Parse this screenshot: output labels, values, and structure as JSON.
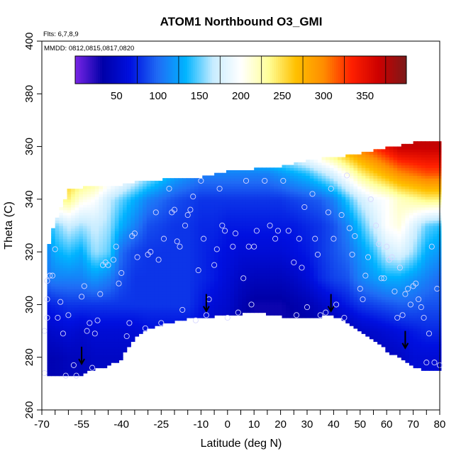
{
  "chart_data": {
    "type": "heatmap",
    "title": "ATOM1 Northbound O3_GMI",
    "annotations": {
      "flights": "Flts: 6,7,8,9",
      "dates": "MMDD: 0812,0815,0817,0820"
    },
    "xlabel": "Latitude (deg N)",
    "ylabel": "Theta (C)",
    "xlim": [
      -70,
      80
    ],
    "ylim": [
      260,
      400
    ],
    "x_tick_labels": [
      "-70",
      "-55",
      "-40",
      "-25",
      "-10",
      "0",
      "10",
      "20",
      "30",
      "40",
      "50",
      "60",
      "70",
      "80"
    ],
    "x_tick_values": [
      -70,
      -55,
      -40,
      -25,
      -10,
      0,
      10,
      20,
      30,
      40,
      50,
      60,
      70,
      80
    ],
    "x_minor_ticks": [
      -65,
      -60,
      -50,
      -45,
      -35,
      -30,
      -20,
      -15,
      -5,
      5,
      15,
      25,
      35,
      45,
      55,
      65,
      75
    ],
    "y_tick_labels": [
      "260",
      "280",
      "300",
      "320",
      "340",
      "360",
      "380",
      "400"
    ],
    "y_tick_values": [
      260,
      280,
      300,
      320,
      340,
      360,
      380,
      400
    ],
    "colorbar": {
      "range": [
        0,
        400
      ],
      "tick_labels": [
        "50",
        "100",
        "150",
        "200",
        "250",
        "300",
        "350"
      ],
      "tick_values": [
        50,
        100,
        150,
        200,
        250,
        300,
        350
      ],
      "colors": [
        "#7a25e6",
        "#0000a8",
        "#0010e0",
        "#1f6cf5",
        "#00b4ff",
        "#c8ecff",
        "#ffffff",
        "#ffff99",
        "#ffc000",
        "#ff8c00",
        "#ff2000",
        "#cc0000",
        "#7a1a1a"
      ]
    },
    "floor": {
      "lat": [
        -70,
        -65,
        -60,
        -55,
        -50,
        -45,
        -40,
        -35,
        -30,
        -25,
        -20,
        -15,
        -10,
        -5,
        0,
        5,
        10,
        15,
        20,
        25,
        30,
        35,
        40,
        45,
        50,
        55,
        60,
        65,
        70,
        75,
        80
      ],
      "theta": [
        274,
        273,
        273,
        274,
        276,
        277,
        280,
        288,
        291,
        293,
        294,
        295,
        295,
        296,
        296,
        297,
        298,
        297,
        296,
        295,
        295,
        296,
        296,
        294,
        290,
        287,
        283,
        280,
        277,
        275,
        275
      ]
    },
    "ceiling": {
      "lat": [
        -70,
        -65,
        -60,
        -55,
        -50,
        -45,
        -40,
        -35,
        -30,
        -25,
        -20,
        -15,
        -10,
        -5,
        0,
        5,
        10,
        15,
        20,
        25,
        30,
        35,
        40,
        45,
        50,
        55,
        60,
        65,
        70,
        75,
        80
      ],
      "theta": [
        313,
        331,
        343,
        344,
        345,
        345,
        345,
        346,
        347,
        347,
        348,
        348,
        348,
        349,
        350,
        351,
        351,
        352,
        352,
        353,
        354,
        355,
        356,
        356,
        357,
        358,
        359,
        360,
        361,
        362,
        362
      ]
    },
    "lat_nodes": [
      -70,
      -65,
      -60,
      -55,
      -50,
      -45,
      -40,
      -35,
      -30,
      -25,
      -20,
      -15,
      -10,
      -5,
      0,
      5,
      10,
      15,
      20,
      25,
      30,
      35,
      40,
      45,
      50,
      55,
      60,
      65,
      70,
      75,
      80
    ],
    "theta_nodes": [
      270,
      280,
      290,
      300,
      310,
      320,
      330,
      340,
      350,
      360
    ],
    "o3_grid": [
      [
        40,
        40,
        45,
        45,
        50,
        50,
        50,
        50,
        60,
        60,
        60,
        60,
        50,
        45,
        40,
        30,
        30,
        30,
        30,
        30,
        30,
        30,
        30,
        35,
        40,
        40,
        45,
        50,
        60,
        60,
        60
      ],
      [
        40,
        40,
        45,
        45,
        50,
        50,
        50,
        50,
        60,
        60,
        60,
        60,
        50,
        45,
        40,
        30,
        30,
        30,
        30,
        30,
        30,
        30,
        30,
        35,
        40,
        40,
        45,
        50,
        60,
        60,
        60
      ],
      [
        50,
        55,
        60,
        55,
        60,
        60,
        60,
        60,
        65,
        65,
        65,
        65,
        60,
        50,
        45,
        35,
        30,
        30,
        30,
        30,
        30,
        35,
        35,
        40,
        50,
        55,
        60,
        65,
        70,
        75,
        75
      ],
      [
        70,
        75,
        80,
        80,
        80,
        80,
        80,
        80,
        80,
        80,
        80,
        80,
        70,
        60,
        55,
        40,
        30,
        30,
        30,
        35,
        40,
        50,
        60,
        70,
        80,
        85,
        90,
        95,
        95,
        90,
        90
      ],
      [
        100,
        110,
        110,
        110,
        120,
        110,
        90,
        80,
        80,
        80,
        80,
        80,
        75,
        70,
        60,
        50,
        45,
        45,
        45,
        50,
        60,
        75,
        85,
        90,
        110,
        120,
        130,
        130,
        120,
        110,
        100
      ],
      [
        100,
        130,
        140,
        130,
        160,
        150,
        100,
        85,
        80,
        80,
        80,
        80,
        75,
        70,
        65,
        60,
        60,
        60,
        60,
        65,
        70,
        80,
        90,
        100,
        120,
        140,
        170,
        180,
        160,
        130,
        120
      ],
      [
        110,
        150,
        170,
        160,
        170,
        160,
        130,
        110,
        90,
        85,
        80,
        80,
        75,
        75,
        70,
        70,
        70,
        70,
        70,
        70,
        75,
        80,
        90,
        110,
        140,
        170,
        200,
        210,
        180,
        150,
        140
      ],
      [
        180,
        230,
        240,
        210,
        200,
        170,
        150,
        130,
        110,
        100,
        90,
        85,
        80,
        80,
        80,
        80,
        80,
        80,
        80,
        85,
        90,
        95,
        110,
        140,
        170,
        190,
        200,
        220,
        230,
        240,
        240
      ],
      [
        250,
        270,
        270,
        260,
        250,
        230,
        210,
        190,
        170,
        150,
        130,
        120,
        110,
        110,
        110,
        110,
        110,
        110,
        120,
        130,
        140,
        160,
        180,
        210,
        240,
        260,
        280,
        300,
        310,
        320,
        320
      ],
      [
        300,
        300,
        300,
        300,
        300,
        300,
        280,
        260,
        240,
        220,
        200,
        180,
        170,
        170,
        170,
        170,
        180,
        190,
        200,
        210,
        230,
        250,
        270,
        290,
        310,
        330,
        350,
        370,
        370,
        370,
        370
      ]
    ],
    "observation_points": [
      [
        -69,
        274
      ],
      [
        -69,
        290
      ],
      [
        -68,
        295
      ],
      [
        -68,
        302
      ],
      [
        -68,
        309
      ],
      [
        -67,
        311
      ],
      [
        -66,
        311
      ],
      [
        -65,
        321
      ],
      [
        -64,
        295
      ],
      [
        -63,
        301
      ],
      [
        -62,
        289
      ],
      [
        -61,
        273
      ],
      [
        -60,
        296
      ],
      [
        -58,
        277
      ],
      [
        -57,
        273
      ],
      [
        -55,
        303
      ],
      [
        -54,
        307
      ],
      [
        -53,
        290
      ],
      [
        -52,
        293
      ],
      [
        -51,
        276
      ],
      [
        -50,
        289
      ],
      [
        -49,
        294
      ],
      [
        -48,
        304
      ],
      [
        -47,
        315
      ],
      [
        -46,
        316
      ],
      [
        -45,
        315
      ],
      [
        -43,
        317
      ],
      [
        -42,
        322
      ],
      [
        -41,
        308
      ],
      [
        -40,
        312
      ],
      [
        -38,
        288
      ],
      [
        -37,
        293
      ],
      [
        -36,
        326
      ],
      [
        -35,
        327
      ],
      [
        -34,
        318
      ],
      [
        -31,
        291
      ],
      [
        -30,
        319
      ],
      [
        -29,
        320
      ],
      [
        -27,
        335
      ],
      [
        -26,
        317
      ],
      [
        -25,
        293
      ],
      [
        -24,
        325
      ],
      [
        -22,
        344
      ],
      [
        -21,
        335
      ],
      [
        -20,
        336
      ],
      [
        -19,
        324
      ],
      [
        -18,
        322
      ],
      [
        -17,
        298
      ],
      [
        -16,
        330
      ],
      [
        -15,
        334
      ],
      [
        -14,
        336
      ],
      [
        -13,
        341
      ],
      [
        -12,
        294
      ],
      [
        -11,
        313
      ],
      [
        -10,
        347
      ],
      [
        -9,
        325
      ],
      [
        -8,
        296
      ],
      [
        -7,
        302
      ],
      [
        -5,
        315
      ],
      [
        -4,
        321
      ],
      [
        -3,
        344
      ],
      [
        -2,
        330
      ],
      [
        -1,
        328
      ],
      [
        0,
        295
      ],
      [
        2,
        322
      ],
      [
        3,
        327
      ],
      [
        4,
        297
      ],
      [
        6,
        310
      ],
      [
        7,
        347
      ],
      [
        8,
        322
      ],
      [
        9,
        300
      ],
      [
        10,
        322
      ],
      [
        11,
        328
      ],
      [
        14,
        347
      ],
      [
        16,
        330
      ],
      [
        18,
        325
      ],
      [
        19,
        328
      ],
      [
        21,
        347
      ],
      [
        23,
        328
      ],
      [
        25,
        316
      ],
      [
        26,
        296
      ],
      [
        27,
        325
      ],
      [
        28,
        314
      ],
      [
        29,
        337
      ],
      [
        30,
        299
      ],
      [
        32,
        342
      ],
      [
        33,
        325
      ],
      [
        34,
        319
      ],
      [
        35,
        296
      ],
      [
        37,
        297
      ],
      [
        38,
        335
      ],
      [
        39,
        344
      ],
      [
        40,
        325
      ],
      [
        41,
        300
      ],
      [
        43,
        334
      ],
      [
        44,
        295
      ],
      [
        45,
        349
      ],
      [
        46,
        329
      ],
      [
        47,
        319
      ],
      [
        48,
        326
      ],
      [
        50,
        306
      ],
      [
        51,
        302
      ],
      [
        52,
        311
      ],
      [
        53,
        318
      ],
      [
        54,
        340
      ],
      [
        56,
        330
      ],
      [
        57,
        323
      ],
      [
        58,
        310
      ],
      [
        59,
        310
      ],
      [
        60,
        322
      ],
      [
        61,
        317
      ],
      [
        62,
        318
      ],
      [
        63,
        305
      ],
      [
        64,
        295
      ],
      [
        65,
        314
      ],
      [
        66,
        296
      ],
      [
        67,
        304
      ],
      [
        68,
        306
      ],
      [
        69,
        300
      ],
      [
        70,
        307
      ],
      [
        71,
        308
      ],
      [
        72,
        302
      ],
      [
        73,
        299
      ],
      [
        74,
        295
      ],
      [
        75,
        278
      ],
      [
        76,
        289
      ],
      [
        77,
        322
      ],
      [
        78,
        278
      ],
      [
        79,
        306
      ],
      [
        80,
        277
      ]
    ],
    "arrows": [
      {
        "lat": -55,
        "theta": 278
      },
      {
        "lat": -8,
        "theta": 298
      },
      {
        "lat": 39,
        "theta": 298
      },
      {
        "lat": 67,
        "theta": 284
      }
    ]
  }
}
